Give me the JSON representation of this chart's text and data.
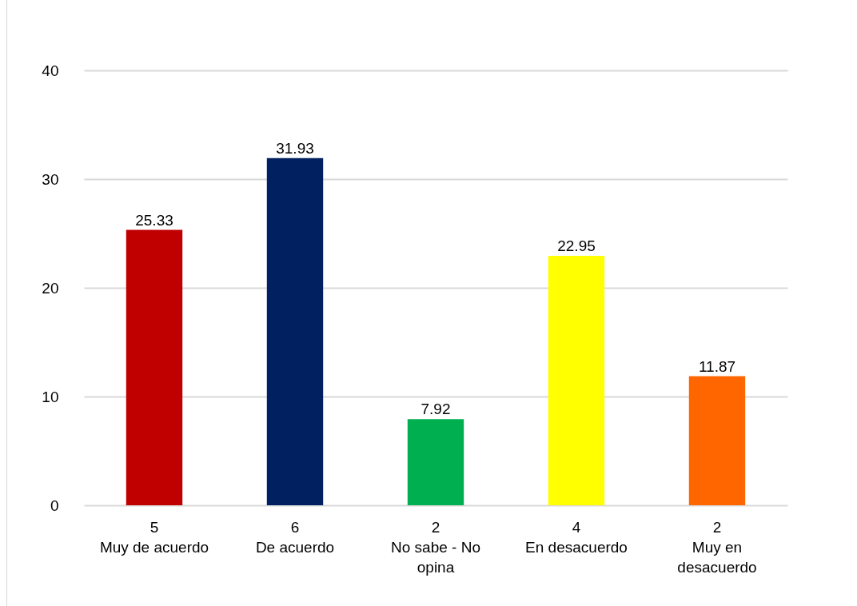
{
  "chart_data": {
    "type": "bar",
    "categories": [
      "5\nMuy de acuerdo",
      "6\nDe acuerdo",
      "2\nNo sabe - No opina",
      "4\nEn desacuerdo",
      "2\nMuy en desacuerdo"
    ],
    "values": [
      25.33,
      31.93,
      7.92,
      22.95,
      11.87
    ],
    "colors": [
      "#c00000",
      "#002060",
      "#00b050",
      "#ffff00",
      "#ff6600"
    ],
    "ylim": [
      0,
      40
    ],
    "yticks": [
      0,
      10,
      20,
      30,
      40
    ],
    "grid": true,
    "data_labels": true
  }
}
